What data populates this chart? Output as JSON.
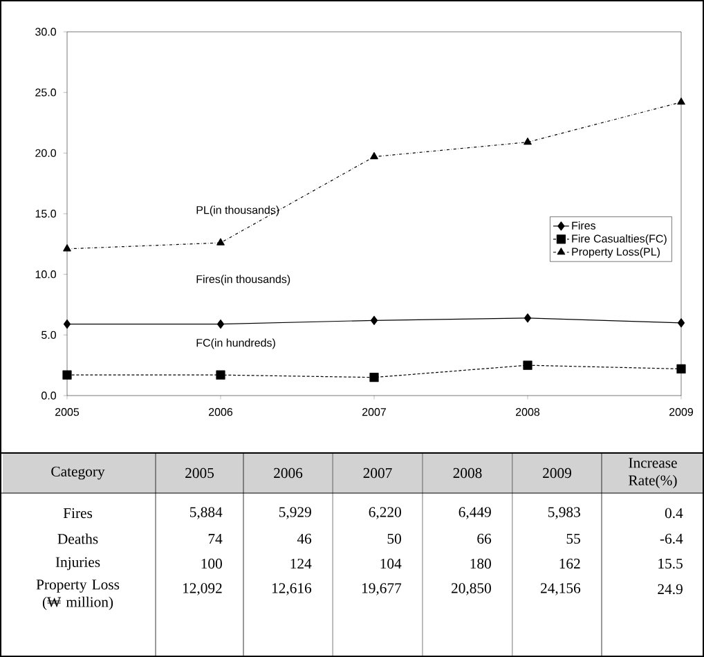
{
  "chart_data": {
    "type": "line",
    "categories": [
      "2005",
      "2006",
      "2007",
      "2008",
      "2009"
    ],
    "series": [
      {
        "name": "Fires",
        "color": "#000000",
        "marker": "diamond",
        "line_style": "solid",
        "values": [
          5.9,
          5.9,
          6.2,
          6.4,
          6.0
        ]
      },
      {
        "name": "Fire Casualties(FC)",
        "color": "#000000",
        "marker": "square",
        "line_style": "dotted",
        "values": [
          1.7,
          1.7,
          1.5,
          2.5,
          2.2
        ]
      },
      {
        "name": "Property Loss(PL)",
        "color": "#000000",
        "marker": "triangle",
        "line_style": "dashed",
        "values": [
          12.1,
          12.6,
          19.7,
          20.9,
          24.2
        ]
      }
    ],
    "ylim": [
      0,
      30
    ],
    "yticks": [
      {
        "value": 0,
        "label": "0.0"
      },
      {
        "value": 5,
        "label": "5.0"
      },
      {
        "value": 10,
        "label": "10.0"
      },
      {
        "value": 15,
        "label": "15.0"
      },
      {
        "value": 20,
        "label": "20.0"
      },
      {
        "value": 25,
        "label": "25.0"
      },
      {
        "value": 30,
        "label": "30.0"
      }
    ],
    "legend": "right",
    "grid": false,
    "annotations": [
      "PL(in thousands)",
      "Fires(in thousands)",
      "FC(in hundreds)",
      "Category",
      "Increase Rate(%)",
      "Fires",
      "5,884",
      "5,929",
      "6,220",
      "6,449",
      "5,983",
      "0.4",
      "Deaths",
      "74",
      "46",
      "50",
      "66",
      "55",
      "-6.4",
      "Injuries",
      "100",
      "124",
      "104",
      "180",
      "162",
      "15.5",
      "Property Loss (₩ million)",
      "12,092",
      "12,616",
      "19,677",
      "20,850",
      "24,156",
      "24.9"
    ]
  }
}
